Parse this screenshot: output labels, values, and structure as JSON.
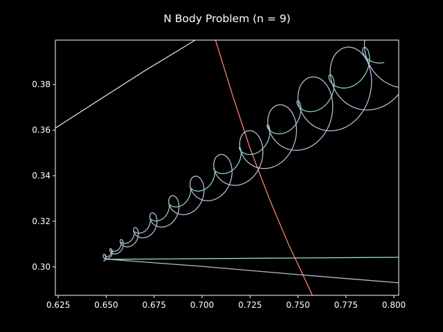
{
  "chart_data": {
    "type": "line",
    "title": "N Body Problem (n = 9)",
    "xlabel": "",
    "ylabel": "",
    "xlim": [
      0.6235,
      0.8025
    ],
    "ylim": [
      0.2875,
      0.3995
    ],
    "xticks": [
      0.625,
      0.65,
      0.675,
      0.7,
      0.725,
      0.75,
      0.775,
      0.8
    ],
    "xtick_labels": [
      "0.625",
      "0.650",
      "0.675",
      "0.700",
      "0.725",
      "0.750",
      "0.775",
      "0.800"
    ],
    "yticks": [
      0.3,
      0.32,
      0.34,
      0.36,
      0.38
    ],
    "ytick_labels": [
      "0.30",
      "0.32",
      "0.34",
      "0.36",
      "0.38"
    ],
    "grid": false,
    "background": "#000000",
    "axis_color": "#ffffff",
    "series": [
      {
        "color": "#ccebc5",
        "points": [
          [
            0.6235,
            0.3609
          ],
          [
            0.644,
            0.372
          ],
          [
            0.67,
            0.386
          ],
          [
            0.69,
            0.3962
          ],
          [
            0.6963,
            0.3995
          ]
        ]
      },
      {
        "color": "#fb8072",
        "points": [
          [
            0.707,
            0.3995
          ],
          [
            0.716,
            0.375
          ],
          [
            0.725,
            0.352
          ],
          [
            0.735,
            0.33
          ],
          [
            0.745,
            0.31
          ],
          [
            0.752,
            0.2975
          ],
          [
            0.7575,
            0.2875
          ]
        ]
      },
      {
        "color": "#a3d8c9",
        "points": [
          [
            0.65,
            0.3033
          ],
          [
            0.7,
            0.3036
          ],
          [
            0.75,
            0.3039
          ],
          [
            0.8025,
            0.3042
          ]
        ]
      },
      {
        "color": "#bebada",
        "points": [
          [
            0.65,
            0.3034
          ],
          [
            0.7,
            0.3002
          ],
          [
            0.75,
            0.2966
          ],
          [
            0.8025,
            0.293
          ]
        ]
      },
      {
        "color": "#bebada",
        "type": "loops",
        "start": [
          0.6485,
          0.3038
        ],
        "end": [
          0.808,
          0.398
        ],
        "loops": 13,
        "radius_start": 0.0012,
        "radius_end": 0.0185
      },
      {
        "color": "#8dd3c7",
        "type": "loops",
        "start": [
          0.649,
          0.304
        ],
        "end": [
          0.795,
          0.396
        ],
        "loops": 13,
        "radius_start": 0.0006,
        "radius_end": 0.006
      }
    ]
  }
}
